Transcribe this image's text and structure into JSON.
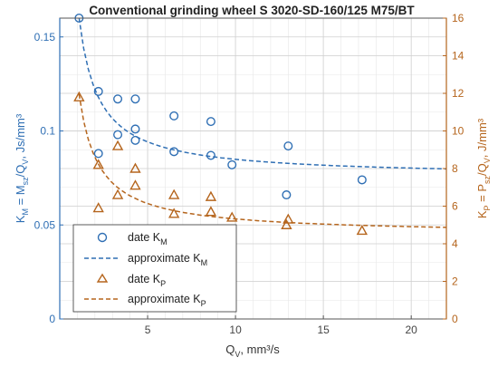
{
  "chart_data": {
    "type": "scatter",
    "title": "Conventional grinding wheel S 3020-SD-160/125 M75/BT",
    "xlabel": {
      "main": "Q",
      "sub": "V",
      "rest": ", mm³/s"
    },
    "ylabel_left": {
      "K": "K",
      "K_sub": "M",
      "eq": " = M",
      "M_sub": "sz",
      "slash": "/Q",
      "Q_sub": "V",
      "unit": ", Js/mm³"
    },
    "ylabel_right": {
      "K": "K",
      "K_sub": "P",
      "eq": " = P",
      "P_sub": "sz",
      "slash": "/Q",
      "Q_sub": "V",
      "unit": ", J/mm³"
    },
    "xlim": [
      0,
      22
    ],
    "ylim_left": [
      0,
      0.16
    ],
    "ylim_right": [
      0,
      16
    ],
    "x_ticks": [
      5,
      10,
      15,
      20
    ],
    "y_left_ticks": [
      0,
      0.05,
      0.1,
      0.15
    ],
    "y_left_tick_labels": [
      "0",
      "0.05",
      "0.1",
      "0.15"
    ],
    "y_right_ticks": [
      0,
      2,
      4,
      6,
      8,
      10,
      12,
      14,
      16
    ],
    "grid": true,
    "legend_position": "bottom-left",
    "colors": {
      "left": "#2f6fb4",
      "right": "#b5651d"
    },
    "series": [
      {
        "name": {
          "main": "date K",
          "sub": "M"
        },
        "axis": "left",
        "marker": "circle",
        "points": [
          [
            1.1,
            0.16
          ],
          [
            2.2,
            0.121
          ],
          [
            2.2,
            0.088
          ],
          [
            3.3,
            0.117
          ],
          [
            3.3,
            0.098
          ],
          [
            4.3,
            0.117
          ],
          [
            4.3,
            0.101
          ],
          [
            4.3,
            0.095
          ],
          [
            6.5,
            0.108
          ],
          [
            6.5,
            0.089
          ],
          [
            8.6,
            0.105
          ],
          [
            8.6,
            0.087
          ],
          [
            9.8,
            0.082
          ],
          [
            13.0,
            0.092
          ],
          [
            12.9,
            0.066
          ],
          [
            17.2,
            0.074
          ]
        ]
      },
      {
        "name": {
          "main": "approximate K",
          "sub": "M"
        },
        "axis": "left",
        "line": "dashed",
        "curve": {
          "x_start": 1.1,
          "x_end": 22,
          "a": 0.0756,
          "b": 0.093
        }
      },
      {
        "name": {
          "main": "date K",
          "sub": "P"
        },
        "axis": "right",
        "marker": "triangle",
        "points": [
          [
            1.1,
            11.8
          ],
          [
            2.2,
            8.2
          ],
          [
            2.2,
            5.9
          ],
          [
            3.3,
            9.2
          ],
          [
            3.3,
            6.6
          ],
          [
            4.3,
            8.0
          ],
          [
            4.3,
            7.1
          ],
          [
            6.5,
            6.6
          ],
          [
            6.5,
            5.6
          ],
          [
            8.6,
            6.5
          ],
          [
            8.6,
            5.7
          ],
          [
            9.8,
            5.4
          ],
          [
            12.9,
            5.0
          ],
          [
            13.0,
            5.3
          ],
          [
            17.2,
            4.7
          ]
        ]
      },
      {
        "name": {
          "main": "approximate K",
          "sub": "P"
        },
        "axis": "right",
        "line": "dashed",
        "curve": {
          "x_start": 1.1,
          "x_end": 22,
          "a": 4.5,
          "b": 8.2
        }
      }
    ]
  }
}
